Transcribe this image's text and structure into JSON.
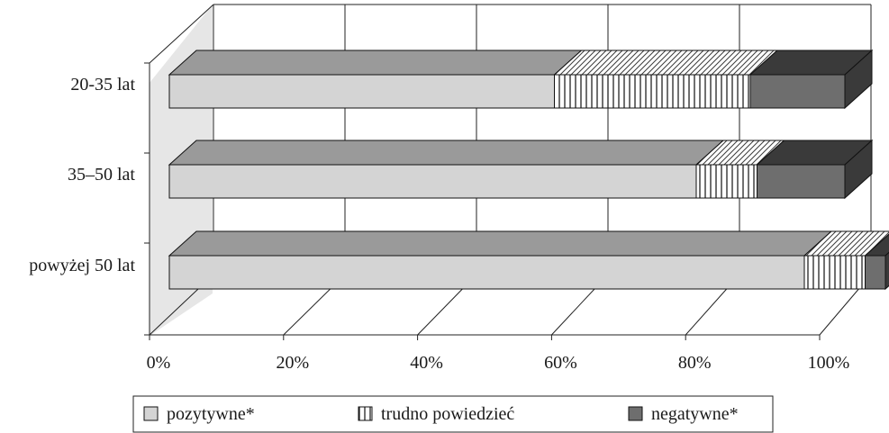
{
  "chart_data": {
    "type": "bar",
    "orientation": "horizontal",
    "stacked": "100%",
    "three_d": true,
    "categories": [
      "20-35 lat",
      "35–50 lat",
      "powyżej 50 lat"
    ],
    "series": [
      {
        "name": "pozytywne*",
        "values": [
          57,
          78,
          94
        ]
      },
      {
        "name": "trudno powiedzieć",
        "values": [
          29,
          9,
          9
        ]
      },
      {
        "name": "negatywne*",
        "values": [
          14,
          13,
          3
        ]
      }
    ],
    "xlim": [
      0,
      100
    ],
    "x_ticks": [
      "0%",
      "20%",
      "40%",
      "60%",
      "80%",
      "100%"
    ],
    "grid": true,
    "legend_position": "bottom",
    "colors": {
      "pozytywne*": "#d4d4d4",
      "trudno powiedzieć": "#ffffff",
      "negatywne*": "#6e6e6e",
      "top_face_pozytywne": "#9a9a9a",
      "top_face_negatywne": "#3a3a3a",
      "side_wall": "#e6e6e6"
    }
  }
}
